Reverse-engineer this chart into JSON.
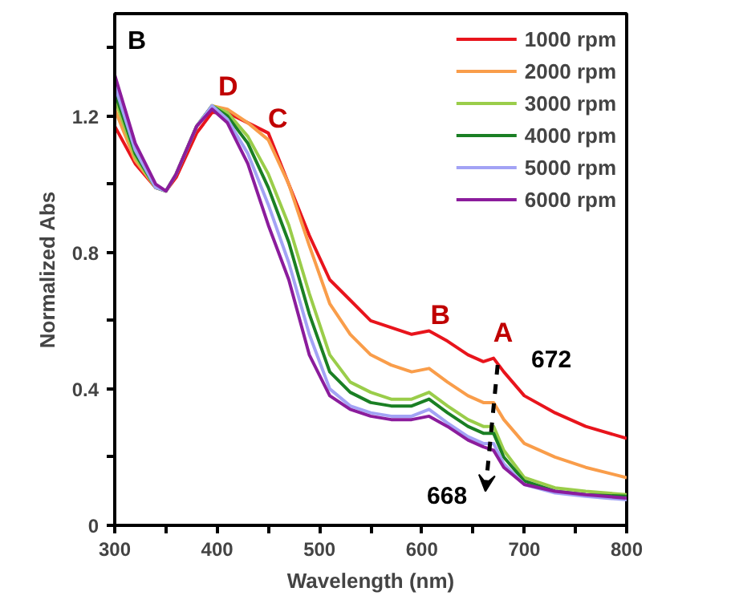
{
  "chart_data": {
    "type": "line",
    "xlabel": "Wavelength (nm)",
    "ylabel": "Normalized Abs",
    "x": [
      300,
      320,
      340,
      350,
      360,
      380,
      395,
      410,
      430,
      450,
      470,
      490,
      510,
      530,
      550,
      570,
      590,
      607,
      625,
      645,
      660,
      670,
      680,
      700,
      730,
      760,
      800
    ],
    "series": [
      {
        "name": "1000 rpm",
        "color": "#e8141c",
        "values": [
          1.17,
          1.06,
          0.99,
          0.98,
          1.02,
          1.15,
          1.21,
          1.21,
          1.18,
          1.15,
          1.0,
          0.85,
          0.72,
          0.66,
          0.6,
          0.58,
          0.56,
          0.57,
          0.54,
          0.5,
          0.48,
          0.49,
          0.45,
          0.38,
          0.33,
          0.29,
          0.255
        ]
      },
      {
        "name": "2000 rpm",
        "color": "#f99d4a",
        "values": [
          1.22,
          1.07,
          0.99,
          0.98,
          1.03,
          1.17,
          1.23,
          1.22,
          1.18,
          1.13,
          1.0,
          0.82,
          0.65,
          0.56,
          0.5,
          0.47,
          0.45,
          0.46,
          0.42,
          0.38,
          0.36,
          0.36,
          0.31,
          0.24,
          0.2,
          0.17,
          0.14
        ]
      },
      {
        "name": "3000 rpm",
        "color": "#9acd4a",
        "values": [
          1.25,
          1.08,
          0.99,
          0.98,
          1.03,
          1.17,
          1.23,
          1.21,
          1.14,
          1.03,
          0.88,
          0.68,
          0.5,
          0.42,
          0.39,
          0.37,
          0.37,
          0.39,
          0.35,
          0.31,
          0.29,
          0.29,
          0.22,
          0.14,
          0.11,
          0.1,
          0.09
        ]
      },
      {
        "name": "4000 rpm",
        "color": "#1a7f24",
        "values": [
          1.27,
          1.09,
          0.99,
          0.98,
          1.03,
          1.17,
          1.23,
          1.2,
          1.12,
          0.99,
          0.83,
          0.62,
          0.45,
          0.39,
          0.36,
          0.35,
          0.35,
          0.37,
          0.33,
          0.29,
          0.27,
          0.27,
          0.2,
          0.13,
          0.1,
          0.09,
          0.085
        ]
      },
      {
        "name": "5000 rpm",
        "color": "#a3a3f5",
        "values": [
          1.29,
          1.1,
          0.99,
          0.98,
          1.03,
          1.17,
          1.23,
          1.19,
          1.09,
          0.94,
          0.77,
          0.56,
          0.4,
          0.35,
          0.33,
          0.32,
          0.32,
          0.34,
          0.3,
          0.26,
          0.24,
          0.24,
          0.18,
          0.12,
          0.095,
          0.085,
          0.075
        ]
      },
      {
        "name": "6000 rpm",
        "color": "#8b1c9c",
        "values": [
          1.32,
          1.12,
          1.0,
          0.98,
          1.03,
          1.17,
          1.22,
          1.18,
          1.06,
          0.88,
          0.72,
          0.5,
          0.38,
          0.34,
          0.32,
          0.31,
          0.31,
          0.32,
          0.29,
          0.25,
          0.23,
          0.22,
          0.17,
          0.12,
          0.1,
          0.09,
          0.08
        ]
      }
    ],
    "xlim": [
      300,
      800
    ],
    "ylim": [
      0,
      1.5
    ],
    "xticks": [
      300,
      {
        "value": 350,
        "label": null
      },
      400,
      {
        "value": 450,
        "label": null
      },
      500,
      {
        "value": 550,
        "label": null
      },
      600,
      {
        "value": 650,
        "label": null
      },
      700,
      {
        "value": 750,
        "label": null
      },
      800
    ],
    "yticks": [
      0,
      {
        "value": 0.2,
        "label": null
      },
      0.4,
      {
        "value": 0.6,
        "label": null
      },
      0.8,
      {
        "value": 1.0,
        "label": null
      },
      1.2,
      {
        "value": 1.4,
        "label": null
      }
    ],
    "grid": false,
    "legend": "top right",
    "marker": "none",
    "line_style": "solid",
    "annotations": [
      "B",
      {
        "text": "D",
        "x": 395,
        "y": 1.23
      },
      {
        "text": "C",
        "x": 450,
        "y": 1.15
      },
      {
        "text": "B",
        "x": 607,
        "y": 0.57
      },
      {
        "text": "A",
        "x": 670,
        "y": 0.49
      },
      {
        "text": "672",
        "x": 670,
        "y": 0.49
      },
      {
        "text": "668",
        "x": 670,
        "y": 0.22
      }
    ]
  }
}
